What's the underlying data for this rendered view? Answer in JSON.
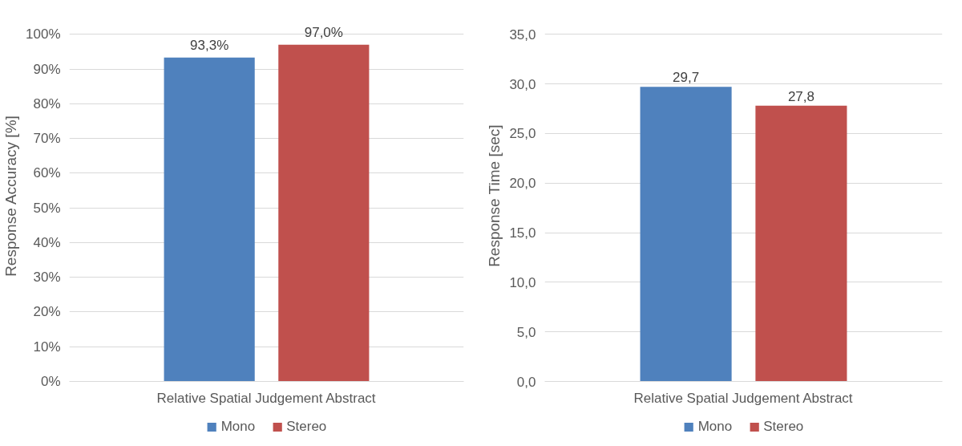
{
  "chart_data": [
    {
      "type": "bar",
      "categories": [
        "Relative Spatial Judgement Abstract"
      ],
      "ylabel": "Response Accuracy [%]",
      "series": [
        {
          "name": "Mono",
          "color": "#4f81bd",
          "values": [
            93.3
          ],
          "value_labels": [
            "93,3%"
          ]
        },
        {
          "name": "Stereo",
          "color": "#c0504d",
          "values": [
            97.0
          ],
          "value_labels": [
            "97,0%"
          ]
        }
      ],
      "ylim": [
        0,
        100
      ],
      "yticks": [
        {
          "value": 0,
          "label": "0%"
        },
        {
          "value": 10,
          "label": "10%"
        },
        {
          "value": 20,
          "label": "20%"
        },
        {
          "value": 30,
          "label": "30%"
        },
        {
          "value": 40,
          "label": "40%"
        },
        {
          "value": 50,
          "label": "50%"
        },
        {
          "value": 60,
          "label": "60%"
        },
        {
          "value": 70,
          "label": "70%"
        },
        {
          "value": 80,
          "label": "80%"
        },
        {
          "value": 90,
          "label": "90%"
        },
        {
          "value": 100,
          "label": "100%"
        }
      ],
      "grid": "y",
      "legend": "bottom"
    },
    {
      "type": "bar",
      "categories": [
        "Relative Spatial Judgement Abstract"
      ],
      "ylabel": "Response Time [sec]",
      "series": [
        {
          "name": "Mono",
          "color": "#4f81bd",
          "values": [
            29.7
          ],
          "value_labels": [
            "29,7"
          ]
        },
        {
          "name": "Stereo",
          "color": "#c0504d",
          "values": [
            27.8
          ],
          "value_labels": [
            "27,8"
          ]
        }
      ],
      "ylim": [
        0,
        35
      ],
      "yticks": [
        {
          "value": 0,
          "label": "0,0"
        },
        {
          "value": 5,
          "label": "5,0"
        },
        {
          "value": 10,
          "label": "10,0"
        },
        {
          "value": 15,
          "label": "15,0"
        },
        {
          "value": 20,
          "label": "20,0"
        },
        {
          "value": 25,
          "label": "25,0"
        },
        {
          "value": 30,
          "label": "30,0"
        },
        {
          "value": 35,
          "label": "35,0"
        }
      ],
      "grid": "y",
      "legend": "bottom"
    }
  ]
}
